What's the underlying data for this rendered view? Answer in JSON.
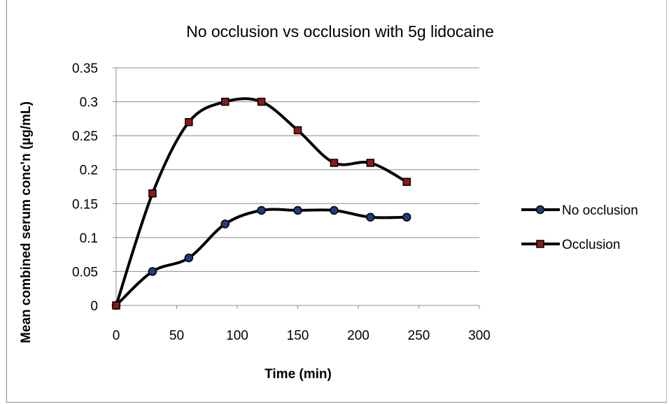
{
  "chart_data": {
    "type": "line",
    "title": "No occlusion vs occlusion with 5g lidocaine",
    "xlabel": "Time (min)",
    "ylabel": "Mean combined serum conc'n (µg/mL)",
    "xlim": [
      0,
      300
    ],
    "ylim": [
      0,
      0.35
    ],
    "x_ticks": [
      "0",
      "50",
      "100",
      "150",
      "200",
      "250",
      "300"
    ],
    "y_ticks": [
      "0",
      "0.05",
      "0.1",
      "0.15",
      "0.2",
      "0.25",
      "0.3",
      "0.35"
    ],
    "grid": "horizontal",
    "legend_position": "right",
    "smooth": true,
    "x": [
      0,
      30,
      60,
      90,
      120,
      150,
      180,
      210,
      240
    ],
    "series": [
      {
        "name": "No occlusion",
        "marker": "circle",
        "marker_color": "#1f3d7a",
        "line_color": "#000000",
        "values": [
          0,
          0.05,
          0.07,
          0.12,
          0.14,
          0.14,
          0.14,
          0.13,
          0.13
        ]
      },
      {
        "name": "Occlusion",
        "marker": "square",
        "marker_color": "#8b1a1a",
        "line_color": "#000000",
        "values": [
          0,
          0.165,
          0.27,
          0.3,
          0.3,
          0.258,
          0.21,
          0.21,
          0.182
        ]
      }
    ]
  }
}
